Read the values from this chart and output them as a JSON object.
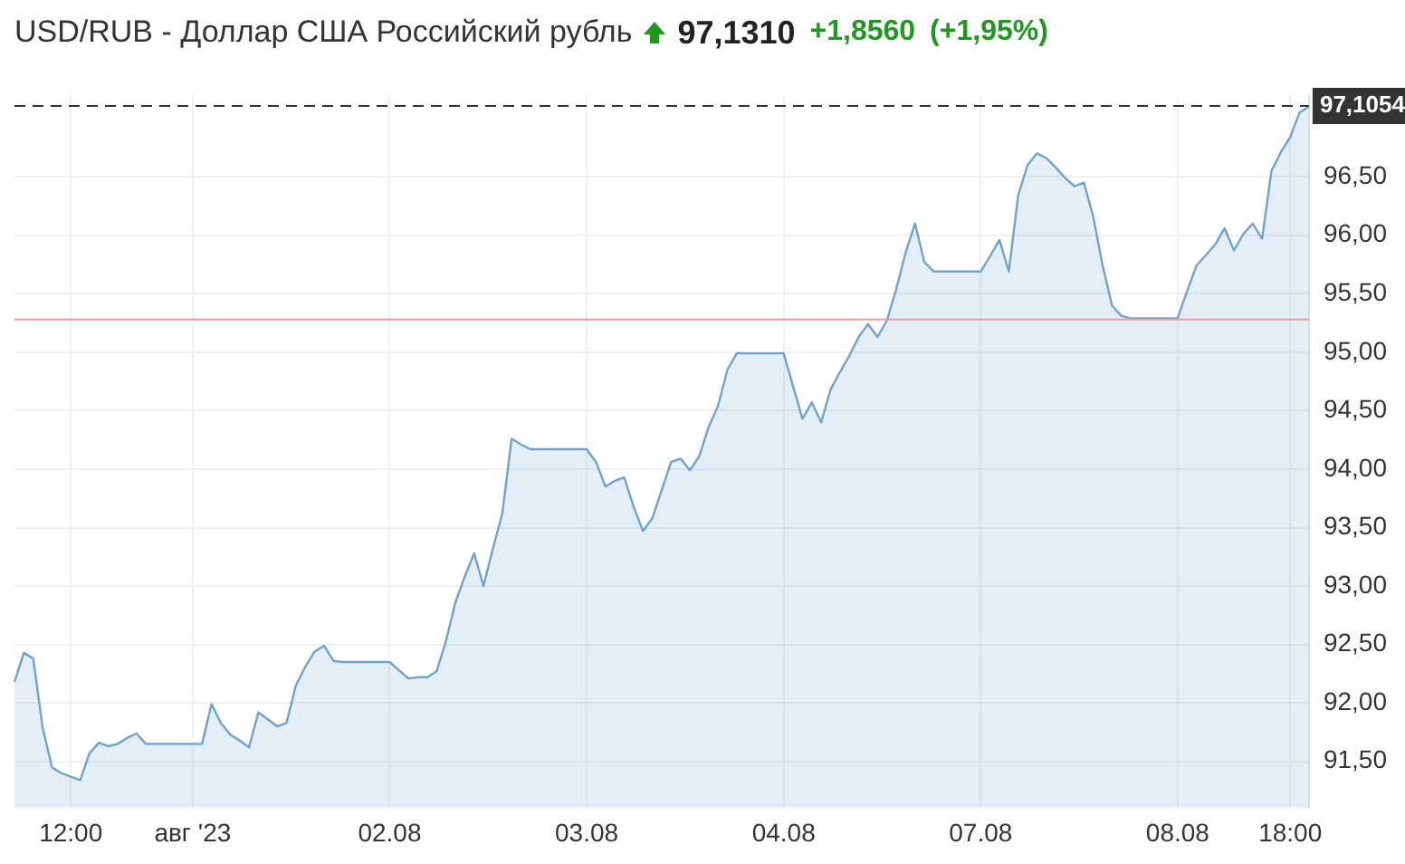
{
  "chart_data": {
    "type": "area",
    "title": "USD/RUB - Доллар США Российский рубль",
    "annotations": [
      "97,1310",
      "+1,8560",
      "(+1,95%)"
    ],
    "categories": [
      null,
      null,
      null,
      null,
      null,
      null,
      "12:00",
      null,
      null,
      null,
      null,
      null,
      null,
      null,
      null,
      null,
      null,
      null,
      null,
      "авг '23",
      null,
      null,
      null,
      null,
      null,
      null,
      null,
      null,
      null,
      null,
      null,
      null,
      null,
      null,
      null,
      null,
      null,
      null,
      null,
      null,
      "02.08",
      null,
      null,
      null,
      null,
      null,
      null,
      null,
      null,
      null,
      null,
      null,
      null,
      null,
      null,
      null,
      null,
      null,
      null,
      null,
      null,
      "03.08",
      null,
      null,
      null,
      null,
      null,
      null,
      null,
      null,
      null,
      null,
      null,
      null,
      null,
      null,
      null,
      null,
      null,
      null,
      null,
      null,
      "04.08",
      null,
      null,
      null,
      null,
      null,
      null,
      null,
      null,
      null,
      null,
      null,
      null,
      null,
      null,
      null,
      null,
      null,
      null,
      null,
      null,
      "07.08",
      null,
      null,
      null,
      null,
      null,
      null,
      null,
      null,
      null,
      null,
      null,
      null,
      null,
      null,
      null,
      null,
      null,
      null,
      null,
      null,
      "08.08",
      null,
      null,
      null,
      null,
      null,
      null,
      null,
      null,
      null,
      null,
      null,
      "18:00",
      null,
      null
    ],
    "series": [
      {
        "color": "#6fa3cf",
        "values": [
          92.18,
          92.43,
          92.38,
          91.79,
          91.45,
          91.4,
          91.37,
          91.34,
          91.57,
          91.66,
          91.63,
          91.65,
          91.7,
          91.74,
          91.65,
          91.65,
          91.65,
          91.65,
          91.65,
          91.65,
          91.65,
          91.99,
          91.83,
          91.73,
          91.68,
          91.62,
          91.92,
          91.86,
          91.8,
          91.83,
          92.15,
          92.31,
          92.44,
          92.49,
          92.36,
          92.35,
          92.35,
          92.35,
          92.35,
          92.35,
          92.35,
          92.28,
          92.21,
          92.22,
          92.22,
          92.27,
          92.53,
          92.86,
          93.08,
          93.28,
          93.0,
          93.32,
          93.62,
          94.26,
          94.21,
          94.17,
          94.17,
          94.17,
          94.17,
          94.17,
          94.17,
          94.17,
          94.06,
          93.85,
          93.9,
          93.93,
          93.68,
          93.47,
          93.58,
          93.82,
          94.06,
          94.09,
          93.99,
          94.11,
          94.36,
          94.54,
          94.85,
          94.99,
          94.99,
          94.99,
          94.99,
          94.99,
          94.99,
          94.71,
          94.43,
          94.57,
          94.4,
          94.68,
          94.83,
          94.97,
          95.13,
          95.24,
          95.13,
          95.27,
          95.54,
          95.85,
          96.1,
          95.77,
          95.69,
          95.69,
          95.69,
          95.69,
          95.69,
          95.69,
          95.82,
          95.96,
          95.69,
          96.34,
          96.6,
          96.7,
          96.66,
          96.58,
          96.49,
          96.42,
          96.45,
          96.16,
          95.74,
          95.4,
          95.31,
          95.29,
          95.29,
          95.29,
          95.29,
          95.29,
          95.29,
          95.52,
          95.74,
          95.83,
          95.92,
          96.06,
          95.87,
          96.01,
          96.1,
          95.97,
          96.55,
          96.71,
          96.84,
          97.05,
          97.1
        ]
      }
    ],
    "ylim": [
      91.1,
      97.2
    ],
    "yticks": [
      {
        "value": 91.5,
        "label": "91,50"
      },
      {
        "value": 92,
        "label": "92,00"
      },
      {
        "value": 92.5,
        "label": "92,50"
      },
      {
        "value": 93,
        "label": "93,00"
      },
      {
        "value": 93.5,
        "label": "93,50"
      },
      {
        "value": 94,
        "label": "94,00"
      },
      {
        "value": 94.5,
        "label": "94,50"
      },
      {
        "value": 95,
        "label": "95,00"
      },
      {
        "value": 95.5,
        "label": "95,50"
      },
      {
        "value": 96,
        "label": "96,00"
      },
      {
        "value": 96.5,
        "label": "96,50"
      }
    ],
    "ref_lines": [
      {
        "axis": "y",
        "value": 95.28,
        "color": "#e89a9a",
        "line_style": "solid"
      },
      {
        "axis": "y",
        "value": 97.1054,
        "label": "97,1054",
        "color": "#333333",
        "line_style": "dashed"
      }
    ],
    "grid": true,
    "legend": false,
    "marker": "none",
    "line_style": "solid"
  }
}
